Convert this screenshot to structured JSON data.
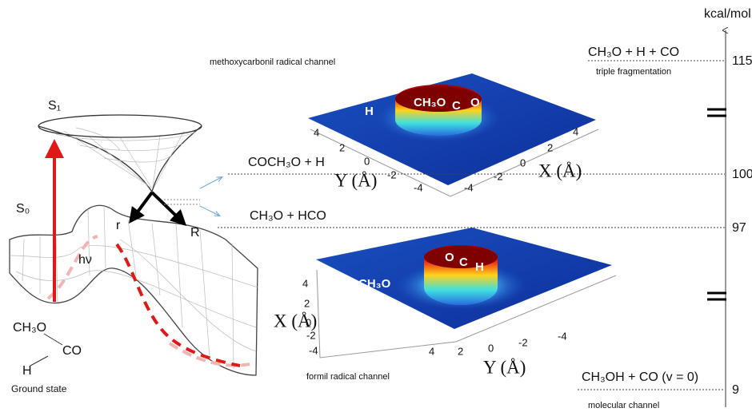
{
  "energy_axis": {
    "unit": "kcal/mol",
    "levels": [
      {
        "value": 115,
        "species": "CH₃O + H + CO",
        "channel": "triple fragmentation"
      },
      {
        "value": 100,
        "species": "COCH₃O + H"
      },
      {
        "value": 97,
        "species": "CH₃O + HCO"
      },
      {
        "value": 9,
        "species": "CH₃OH + CO (v = 0)",
        "channel": "molecular channel"
      }
    ]
  },
  "potential_surfaces": {
    "excited_state": "S₁",
    "ground_state": "S₀",
    "excitation": "hν",
    "coordinate_r": "r",
    "coordinate_R": "R",
    "molecule": {
      "fragment_1": "CH₃O",
      "fragment_2": "CO",
      "atom": "H"
    },
    "caption": "Ground state"
  },
  "density_plots": [
    {
      "title": "methoxycarbonil radical channel",
      "labels": [
        "H",
        "CH₃O",
        "C",
        "O"
      ],
      "left_axis": "Y (Å)",
      "right_axis": "X (Å)",
      "left_ticks": [
        4,
        2,
        0,
        -2,
        -4
      ],
      "right_ticks": [
        -4,
        -2,
        0,
        2,
        4
      ]
    },
    {
      "title": "formil radical channel",
      "labels": [
        "CH₃O",
        "O",
        "C",
        "H"
      ],
      "left_axis": "X (Å)",
      "right_axis": "Y (Å)",
      "left_ticks": [
        4,
        2,
        0,
        -2,
        -4
      ],
      "right_ticks": [
        4,
        2,
        0,
        -2,
        -4
      ]
    }
  ]
}
